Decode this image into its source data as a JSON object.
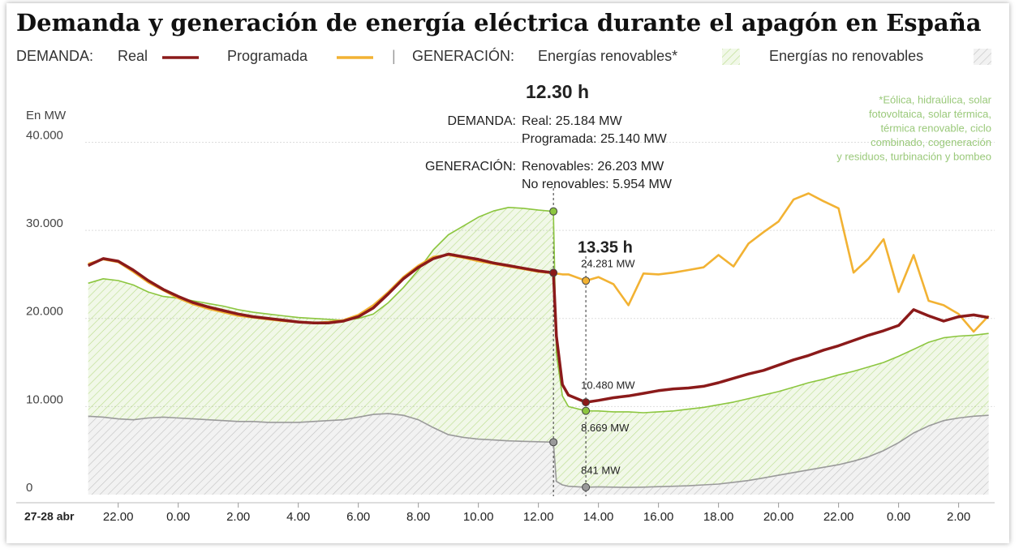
{
  "chart_data": {
    "type": "line",
    "title": "Demanda y generación de energía eléctrica durante el apagón en España",
    "legend_groups": [
      "DEMANDA:",
      "GENERACIÓN:"
    ],
    "legend_separator": "|",
    "ylabel": "En MW",
    "xlabel": "27-28 abr",
    "xlim": [
      20.9,
      51.2
    ],
    "ylim": [
      0,
      44000
    ],
    "yticks": [
      0,
      {
        "value": 10000,
        "label": "10.000"
      },
      {
        "value": 20000,
        "label": "20.000"
      },
      {
        "value": 30000,
        "label": "30.000"
      },
      {
        "value": 40000,
        "label": "40.000"
      }
    ],
    "xticks": [
      {
        "value": 22,
        "label": "22.00"
      },
      {
        "value": 24,
        "label": "0.00"
      },
      {
        "value": 26,
        "label": "2.00"
      },
      {
        "value": 28,
        "label": "4.00"
      },
      {
        "value": 30,
        "label": "6.00"
      },
      {
        "value": 32,
        "label": "8.00"
      },
      {
        "value": 34,
        "label": "10.00"
      },
      {
        "value": 36,
        "label": "12.00"
      },
      {
        "value": 38,
        "label": "14.00"
      },
      {
        "value": 40,
        "label": "16.00"
      },
      {
        "value": 42,
        "label": "18.00"
      },
      {
        "value": 44,
        "label": "20.00"
      },
      {
        "value": 46,
        "label": "22.00"
      },
      {
        "value": 48,
        "label": "0.00"
      },
      {
        "value": 50,
        "label": "2.00"
      }
    ],
    "grid": true,
    "highlight_x": [
      36.5,
      37.58
    ],
    "x": [
      21,
      21.5,
      22,
      22.5,
      23,
      23.5,
      24,
      24.5,
      25,
      25.5,
      26,
      26.5,
      27,
      27.5,
      28,
      28.5,
      29,
      29.5,
      30,
      30.5,
      31,
      31.5,
      32,
      32.5,
      33,
      33.5,
      34,
      34.5,
      35,
      35.5,
      36,
      36.5,
      36.6,
      36.8,
      37,
      37.58,
      38,
      38.5,
      39,
      39.5,
      40,
      40.5,
      41,
      41.5,
      42,
      42.5,
      43,
      43.5,
      44,
      44.5,
      45,
      45.5,
      46,
      46.5,
      47,
      47.5,
      48,
      48.5,
      49,
      49.5,
      50,
      50.5,
      51
    ],
    "series": [
      {
        "name": "Energías no renovables",
        "color": "#9a9a9a",
        "stacked": true,
        "values": [
          8900,
          8800,
          8600,
          8500,
          8700,
          8800,
          8700,
          8600,
          8500,
          8400,
          8300,
          8300,
          8200,
          8200,
          8200,
          8300,
          8400,
          8500,
          8800,
          9100,
          9200,
          9000,
          8500,
          7600,
          6800,
          6500,
          6300,
          6200,
          6100,
          6050,
          6000,
          5954,
          1500,
          1100,
          950,
          841,
          880,
          850,
          820,
          850,
          900,
          950,
          1000,
          1100,
          1200,
          1400,
          1600,
          1900,
          2200,
          2500,
          2800,
          3100,
          3400,
          3800,
          4300,
          5000,
          5900,
          7000,
          7800,
          8400,
          8700,
          8900,
          9000
        ],
        "value_labels": [
          null,
          null,
          null,
          null,
          null,
          null,
          null,
          null,
          null,
          null,
          null,
          null,
          null,
          null,
          null,
          null,
          null,
          null,
          null,
          null,
          null,
          null,
          null,
          null,
          null,
          null,
          null,
          null,
          null,
          null,
          null,
          null,
          null,
          null,
          null,
          "841 MW",
          null,
          null,
          null,
          null,
          null,
          null,
          null,
          null,
          null,
          null,
          null,
          null,
          null,
          null,
          null,
          null,
          null,
          null,
          null,
          null,
          null,
          null,
          null,
          null,
          null,
          null,
          null
        ]
      },
      {
        "name": "Energías renovables*",
        "color": "#8cc63f",
        "stacked": true,
        "values": [
          15100,
          15700,
          15700,
          15300,
          14300,
          13700,
          13600,
          13400,
          13200,
          13000,
          12700,
          12400,
          12300,
          12100,
          11900,
          11700,
          11500,
          11300,
          11200,
          11400,
          12600,
          14500,
          17000,
          20200,
          22700,
          24000,
          25200,
          26000,
          26500,
          26450,
          26300,
          26203,
          14500,
          10100,
          9050,
          8669,
          8620,
          8550,
          8580,
          8450,
          8500,
          8550,
          8700,
          8800,
          9000,
          9100,
          9300,
          9400,
          9500,
          9700,
          9900,
          10000,
          10200,
          10200,
          10200,
          10000,
          9800,
          9500,
          9500,
          9400,
          9300,
          9200,
          9300
        ],
        "value_labels": [
          null,
          null,
          null,
          null,
          null,
          null,
          null,
          null,
          null,
          null,
          null,
          null,
          null,
          null,
          null,
          null,
          null,
          null,
          null,
          null,
          null,
          null,
          null,
          null,
          null,
          null,
          null,
          null,
          null,
          null,
          null,
          null,
          null,
          null,
          null,
          "8.669 MW",
          null,
          null,
          null,
          null,
          null,
          null,
          null,
          null,
          null,
          null,
          null,
          null,
          null,
          null,
          null,
          null,
          null,
          null,
          null,
          null,
          null,
          null,
          null,
          null,
          null,
          null,
          null
        ]
      },
      {
        "name": "Programada",
        "color": "#f2b233",
        "values": [
          26200,
          26700,
          26400,
          25300,
          24100,
          23200,
          22300,
          21600,
          21100,
          20700,
          20300,
          20100,
          19900,
          19700,
          19600,
          19500,
          19600,
          19800,
          20400,
          21500,
          23000,
          24700,
          26000,
          27000,
          27200,
          26900,
          26500,
          26200,
          25900,
          25600,
          25300,
          25140,
          25100,
          25000,
          25000,
          24281,
          24700,
          23900,
          21500,
          25100,
          25000,
          25200,
          25500,
          25800,
          27200,
          25900,
          28500,
          29800,
          31000,
          33500,
          34200,
          33300,
          32500,
          25200,
          26800,
          29000,
          23000,
          27200,
          22000,
          21500,
          20500,
          18500,
          20300
        ],
        "value_labels": [
          null,
          null,
          null,
          null,
          null,
          null,
          null,
          null,
          null,
          null,
          null,
          null,
          null,
          null,
          null,
          null,
          null,
          null,
          null,
          null,
          null,
          null,
          null,
          null,
          null,
          null,
          null,
          null,
          null,
          null,
          null,
          null,
          null,
          null,
          null,
          "24.281 MW",
          null,
          null,
          null,
          null,
          null,
          null,
          null,
          null,
          null,
          null,
          null,
          null,
          null,
          null,
          null,
          null,
          null,
          null,
          null,
          null,
          null,
          null,
          null,
          null,
          null,
          null,
          null
        ]
      },
      {
        "name": "Real",
        "color": "#8b1a1a",
        "values": [
          26000,
          26800,
          26500,
          25500,
          24300,
          23300,
          22500,
          21800,
          21300,
          20900,
          20500,
          20200,
          20000,
          19800,
          19600,
          19500,
          19500,
          19700,
          20200,
          21200,
          22800,
          24500,
          25800,
          26800,
          27300,
          27000,
          26700,
          26300,
          26000,
          25700,
          25400,
          25184,
          18000,
          12500,
          11300,
          10480,
          10700,
          11000,
          11200,
          11500,
          11800,
          12000,
          12100,
          12300,
          12700,
          13200,
          13700,
          14100,
          14700,
          15300,
          15800,
          16400,
          16900,
          17500,
          18100,
          18600,
          19200,
          21000,
          20300,
          19700,
          20200,
          20400,
          20100
        ],
        "value_labels": [
          null,
          null,
          null,
          null,
          null,
          null,
          null,
          null,
          null,
          null,
          null,
          null,
          null,
          null,
          null,
          null,
          null,
          null,
          null,
          null,
          null,
          null,
          null,
          null,
          null,
          null,
          null,
          null,
          null,
          null,
          null,
          null,
          null,
          null,
          null,
          "10.480 MW",
          null,
          null,
          null,
          null,
          null,
          null,
          null,
          null,
          null,
          null,
          null,
          null,
          null,
          null,
          null,
          null,
          null,
          null,
          null,
          null,
          null,
          null,
          null,
          null,
          null,
          null,
          null
        ]
      }
    ],
    "annotations": {
      "time1": "12.30 h",
      "demanda": "DEMANDA:",
      "real": "Real: 25.184 MW",
      "programada": "Programada: 25.140 MW",
      "generacion": "GENERACIÓN:",
      "renovables": "Renovables: 26.203 MW",
      "no_renovables": "No renovables: 5.954 MW",
      "time2": "13.35 h"
    },
    "footnote": [
      "*Eólica, hidraúlica, solar",
      "fotovoltaica, solar térmica,",
      "térmica renovable, ciclo",
      "combinado, cogeneración",
      "y residuos, turbinación y bombeo"
    ]
  }
}
